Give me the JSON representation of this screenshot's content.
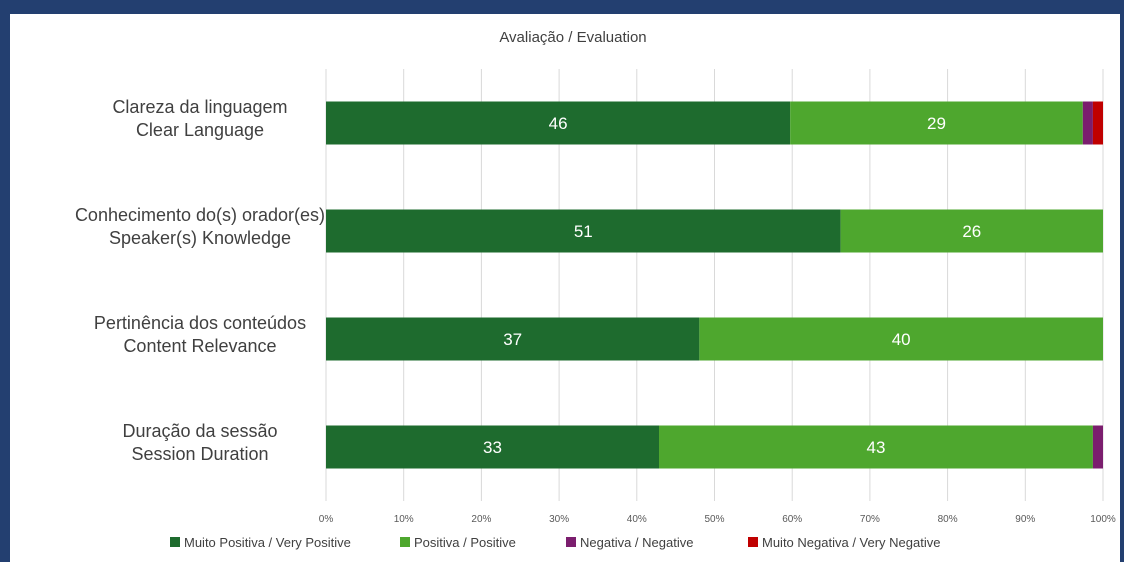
{
  "chart_data": {
    "type": "bar",
    "orientation": "horizontal",
    "stacked": "percent",
    "title": "Avaliação / Evaluation",
    "categories": [
      [
        "Clareza da linguagem",
        "Clear Language"
      ],
      [
        "Conhecimento do(s) orador(es)",
        "Speaker(s) Knowledge"
      ],
      [
        "Pertinência dos conteúdos",
        "Content Relevance"
      ],
      [
        "Duração da sessão",
        "Session Duration"
      ]
    ],
    "series": [
      {
        "name": "Muito Positiva / Very Positive",
        "color": "#1e6b2e",
        "values": [
          46,
          51,
          37,
          33
        ],
        "labels": [
          "46",
          "51",
          "37",
          "33"
        ]
      },
      {
        "name": "Positiva / Positive",
        "color": "#4ea72e",
        "values": [
          29,
          26,
          40,
          43
        ],
        "labels": [
          "29",
          "26",
          "40",
          "43"
        ]
      },
      {
        "name": "Negativa / Negative",
        "color": "#7b1e6e",
        "values": [
          1,
          0,
          0,
          1
        ],
        "labels": [
          "",
          "",
          "",
          ""
        ]
      },
      {
        "name": "Muito Negativa / Very Negative",
        "color": "#c00000",
        "values": [
          1,
          0,
          0,
          0
        ],
        "labels": [
          "",
          "",
          "",
          ""
        ]
      }
    ],
    "xlim": [
      0,
      100
    ],
    "xticks": [
      "0%",
      "10%",
      "20%",
      "30%",
      "40%",
      "50%",
      "60%",
      "70%",
      "80%",
      "90%",
      "100%"
    ],
    "grid": true,
    "legend": "bottom"
  }
}
